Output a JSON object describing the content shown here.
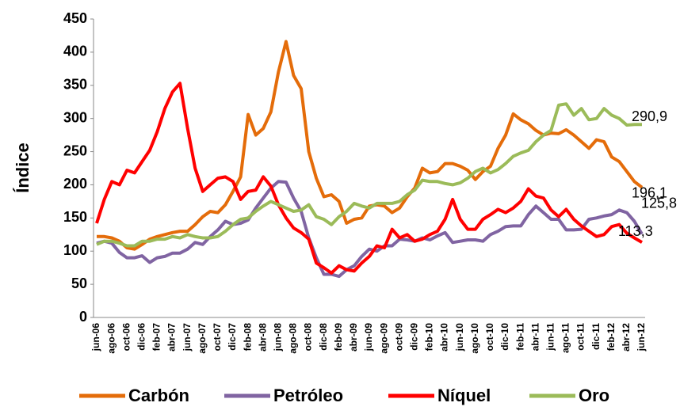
{
  "chart_data": {
    "type": "line",
    "y_label": "Índice",
    "categories": [
      "jun-06",
      null,
      "ago-06",
      null,
      "oct-06",
      null,
      "dic-06",
      null,
      "feb-07",
      null,
      "abr-07",
      null,
      "jun-07",
      null,
      "ago-07",
      null,
      "oct-07",
      null,
      "dic-07",
      null,
      "feb-08",
      null,
      "abr-08",
      null,
      "jun-08",
      null,
      "ago-08",
      null,
      "oct-08",
      null,
      "dic-08",
      null,
      "feb-09",
      null,
      "abr-09",
      null,
      "jun-09",
      null,
      "ago-09",
      null,
      "oct-09",
      null,
      "dic-09",
      null,
      "feb-10",
      null,
      "abr-10",
      null,
      "jun-10",
      null,
      "ago-10",
      null,
      "oct-10",
      null,
      "dic-10",
      null,
      "feb-11",
      null,
      "abr-11",
      null,
      "jun-11",
      null,
      "ago-11",
      null,
      "oct-11",
      null,
      "dic-11",
      null,
      "feb-12",
      null,
      "abr-12",
      null,
      "jun-12"
    ],
    "series": [
      {
        "name": "Carbón",
        "color": "#e46c0a",
        "values": [
          122,
          122,
          120,
          115,
          105,
          103,
          110,
          118,
          122,
          125,
          128,
          130,
          130,
          140,
          152,
          160,
          158,
          170,
          190,
          212,
          306,
          275,
          285,
          310,
          370,
          416,
          365,
          345,
          250,
          210,
          182,
          185,
          175,
          142,
          148,
          150,
          168,
          170,
          168,
          158,
          165,
          182,
          195,
          225,
          218,
          220,
          232,
          232,
          228,
          222,
          208,
          220,
          228,
          255,
          275,
          307,
          298,
          292,
          282,
          275,
          278,
          277,
          283,
          275,
          265,
          255,
          268,
          265,
          242,
          235,
          220,
          205,
          196.1
        ],
        "value_labels": [
          null,
          null,
          null,
          null,
          null,
          null,
          null,
          null,
          null,
          null,
          null,
          null,
          null,
          null,
          null,
          null,
          null,
          null,
          null,
          null,
          null,
          null,
          null,
          null,
          null,
          null,
          null,
          null,
          null,
          null,
          null,
          null,
          null,
          null,
          null,
          null,
          null,
          null,
          null,
          null,
          null,
          null,
          null,
          null,
          null,
          null,
          null,
          null,
          null,
          null,
          null,
          null,
          null,
          null,
          null,
          null,
          null,
          null,
          null,
          null,
          null,
          null,
          null,
          null,
          null,
          null,
          null,
          null,
          null,
          null,
          null,
          null,
          "196,1"
        ]
      },
      {
        "name": "Petróleo",
        "color": "#8064a2",
        "values": [
          112,
          115,
          112,
          98,
          90,
          90,
          93,
          83,
          90,
          92,
          97,
          97,
          103,
          113,
          110,
          122,
          132,
          145,
          140,
          142,
          147,
          165,
          180,
          195,
          205,
          204,
          180,
          160,
          120,
          90,
          65,
          65,
          62,
          72,
          78,
          92,
          103,
          100,
          108,
          108,
          118,
          117,
          115,
          120,
          117,
          123,
          128,
          113,
          115,
          117,
          117,
          115,
          125,
          130,
          137,
          138,
          138,
          155,
          168,
          158,
          148,
          148,
          132,
          132,
          133,
          148,
          150,
          153,
          155,
          162,
          158,
          145,
          125.8
        ],
        "value_labels": [
          null,
          null,
          null,
          null,
          null,
          null,
          null,
          null,
          null,
          null,
          null,
          null,
          null,
          null,
          null,
          null,
          null,
          null,
          null,
          null,
          null,
          null,
          null,
          null,
          null,
          null,
          null,
          null,
          null,
          null,
          null,
          null,
          null,
          null,
          null,
          null,
          null,
          null,
          null,
          null,
          null,
          null,
          null,
          null,
          null,
          null,
          null,
          null,
          null,
          null,
          null,
          null,
          null,
          null,
          null,
          null,
          null,
          null,
          null,
          null,
          null,
          null,
          null,
          null,
          null,
          null,
          null,
          null,
          null,
          null,
          null,
          null,
          "125,8"
        ]
      },
      {
        "name": "Níquel",
        "color": "#ff0000",
        "values": [
          142,
          178,
          205,
          200,
          222,
          218,
          235,
          252,
          280,
          315,
          340,
          353,
          285,
          225,
          190,
          200,
          210,
          212,
          205,
          178,
          190,
          192,
          212,
          198,
          170,
          150,
          135,
          128,
          118,
          82,
          75,
          67,
          78,
          72,
          70,
          82,
          92,
          108,
          105,
          133,
          120,
          125,
          115,
          118,
          125,
          130,
          148,
          178,
          148,
          133,
          133,
          148,
          155,
          163,
          158,
          165,
          175,
          194,
          183,
          180,
          162,
          152,
          163,
          148,
          138,
          130,
          122,
          125,
          137,
          140,
          127,
          120,
          113.3
        ],
        "value_labels": [
          null,
          null,
          null,
          null,
          null,
          null,
          null,
          null,
          null,
          null,
          null,
          null,
          null,
          null,
          null,
          null,
          null,
          null,
          null,
          null,
          null,
          null,
          null,
          null,
          null,
          null,
          null,
          null,
          null,
          null,
          null,
          null,
          null,
          null,
          null,
          null,
          null,
          null,
          null,
          null,
          null,
          null,
          null,
          null,
          null,
          null,
          null,
          null,
          null,
          null,
          null,
          null,
          null,
          null,
          null,
          null,
          null,
          null,
          null,
          null,
          null,
          null,
          null,
          null,
          null,
          null,
          null,
          null,
          null,
          null,
          null,
          null,
          "113,3"
        ]
      },
      {
        "name": "Oro",
        "color": "#9bbb59",
        "values": [
          110,
          115,
          115,
          112,
          108,
          108,
          115,
          115,
          118,
          118,
          122,
          120,
          125,
          122,
          120,
          120,
          122,
          130,
          140,
          148,
          150,
          160,
          168,
          175,
          170,
          165,
          160,
          162,
          170,
          152,
          148,
          140,
          152,
          160,
          172,
          168,
          165,
          172,
          172,
          172,
          175,
          185,
          192,
          207,
          205,
          205,
          202,
          200,
          203,
          210,
          220,
          225,
          218,
          223,
          232,
          243,
          248,
          252,
          265,
          275,
          282,
          320,
          322,
          305,
          315,
          298,
          300,
          315,
          305,
          300,
          290,
          291,
          290.9
        ],
        "value_labels": [
          null,
          null,
          null,
          null,
          null,
          null,
          null,
          null,
          null,
          null,
          null,
          null,
          null,
          null,
          null,
          null,
          null,
          null,
          null,
          null,
          null,
          null,
          null,
          null,
          null,
          null,
          null,
          null,
          null,
          null,
          null,
          null,
          null,
          null,
          null,
          null,
          null,
          null,
          null,
          null,
          null,
          null,
          null,
          null,
          null,
          null,
          null,
          null,
          null,
          null,
          null,
          null,
          null,
          null,
          null,
          null,
          null,
          null,
          null,
          null,
          null,
          null,
          null,
          null,
          null,
          null,
          null,
          null,
          null,
          null,
          null,
          null,
          "290,9"
        ]
      }
    ],
    "ylim": [
      0,
      450
    ],
    "yticks": [
      0,
      50,
      100,
      150,
      200,
      250,
      300,
      350,
      400,
      450
    ],
    "grid": false,
    "legend": "bottom"
  }
}
